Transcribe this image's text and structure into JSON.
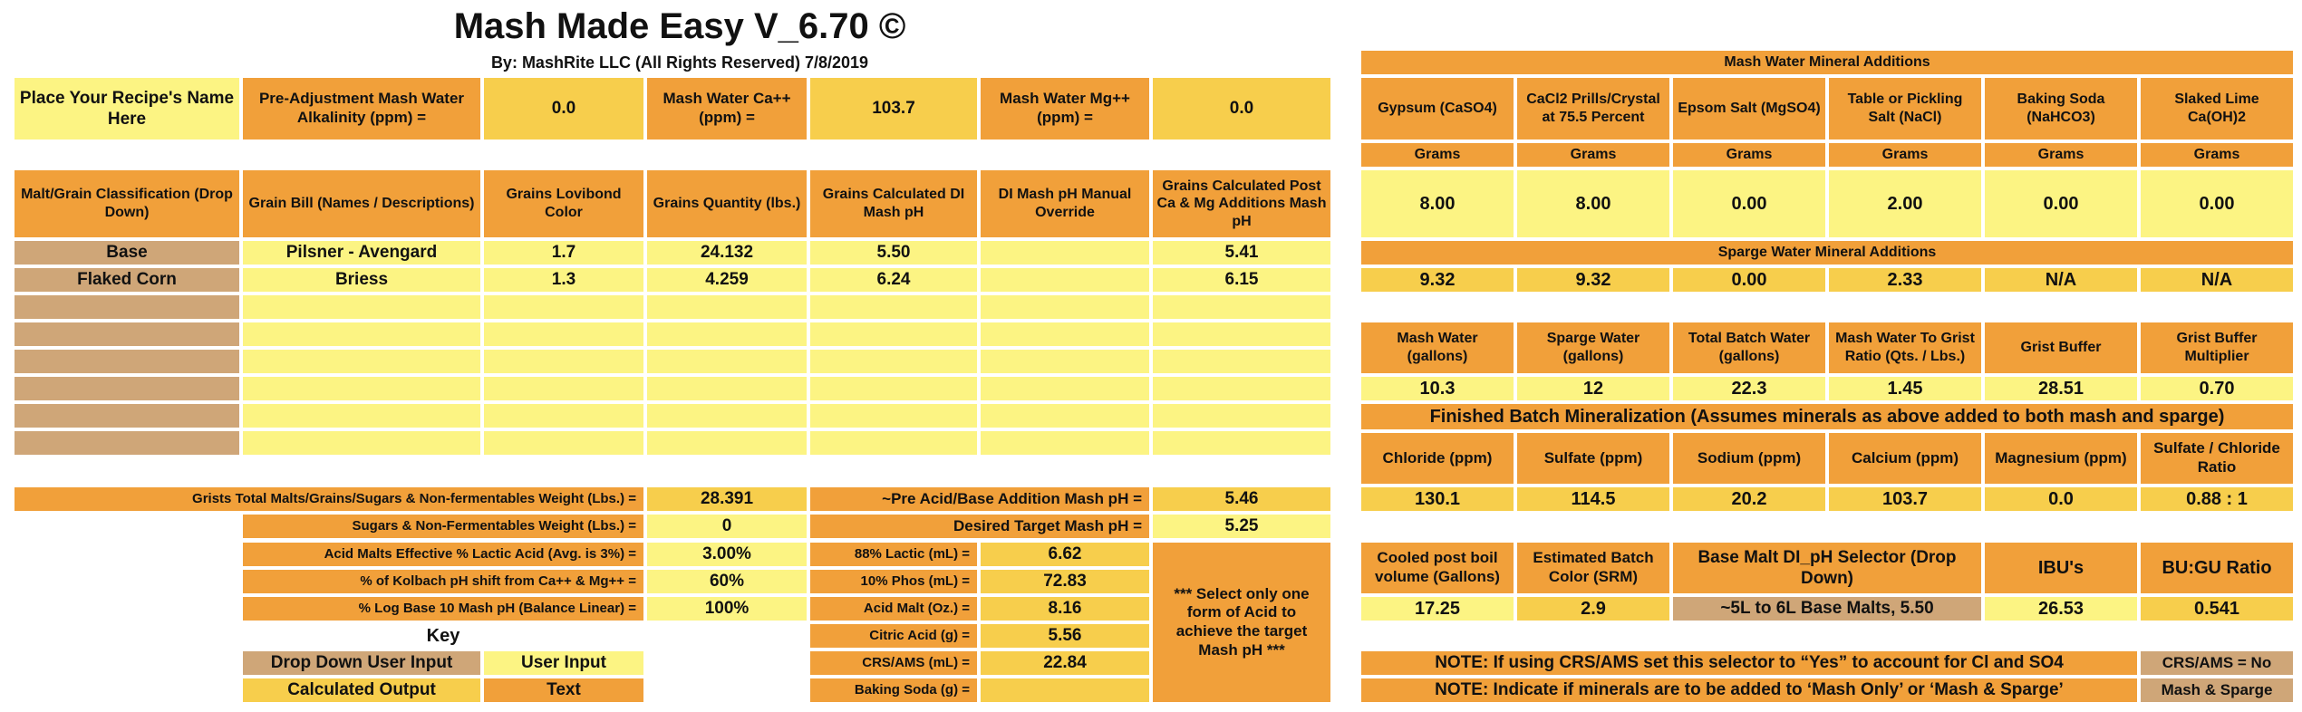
{
  "header": {
    "title": "Mash Made Easy V_6.70 ©",
    "byline": "By: MashRite LLC (All Rights Reserved) 7/8/2019"
  },
  "top": {
    "recipe_name": "Place Your Recipe's Name Here",
    "alk_label": "Pre-Adjustment Mash Water Alkalinity (ppm) =",
    "alk_value": "0.0",
    "ca_label": "Mash Water Ca++ (ppm)  =",
    "ca_value": "103.7",
    "mg_label": "Mash Water Mg++ (ppm)  =",
    "mg_value": "0.0"
  },
  "grain_table": {
    "headers": [
      "Malt/Grain Classification (Drop Down)",
      "Grain Bill (Names / Descriptions)",
      "Grains Lovibond Color",
      "Grains Quantity (lbs.)",
      "Grains Calculated DI Mash pH",
      "DI Mash pH Manual Override",
      "Grains Calculated Post  Ca & Mg Additions Mash pH"
    ],
    "rows": [
      [
        "Base",
        "Pilsner - Avengard",
        "1.7",
        "24.132",
        "5.50",
        "",
        "5.41"
      ],
      [
        "Flaked Corn",
        "Briess",
        "1.3",
        "4.259",
        "6.24",
        "",
        "6.15"
      ],
      [
        "",
        "",
        "",
        "",
        "",
        "",
        ""
      ],
      [
        "",
        "",
        "",
        "",
        "",
        "",
        ""
      ],
      [
        "",
        "",
        "",
        "",
        "",
        "",
        ""
      ],
      [
        "",
        "",
        "",
        "",
        "",
        "",
        ""
      ],
      [
        "",
        "",
        "",
        "",
        "",
        "",
        ""
      ],
      [
        "",
        "",
        "",
        "",
        "",
        "",
        ""
      ]
    ]
  },
  "totals": {
    "weight_label": "Grists Total Malts/Grains/Sugars & Non-fermentables Weight (Lbs.) =",
    "weight_value": "28.391",
    "pre_acid_label": "~Pre Acid/Base Addition Mash pH =",
    "pre_acid_value": "5.46",
    "sugars_label": "Sugars & Non-Fermentables Weight (Lbs.) =",
    "sugars_value": "0",
    "target_label": "Desired Target Mash pH =",
    "target_value": "5.25"
  },
  "acid": {
    "params": [
      {
        "label": "Acid Malts Effective % Lactic Acid (Avg. is 3%) =",
        "value": "3.00%"
      },
      {
        "label": "% of Kolbach pH shift from Ca++ & Mg++ =",
        "value": "60%"
      },
      {
        "label": "% Log Base 10 Mash pH (Balance Linear) =",
        "value": "100%"
      }
    ],
    "additions": [
      {
        "label": "88%  Lactic (mL) =",
        "value": "6.62"
      },
      {
        "label": "10%  Phos (mL) =",
        "value": "72.83"
      },
      {
        "label": "Acid Malt (Oz.) =",
        "value": "8.16"
      },
      {
        "label": "Citric Acid (g) =",
        "value": "5.56"
      },
      {
        "label": "CRS/AMS (mL) =",
        "value": "22.84"
      },
      {
        "label": "Baking Soda (g) =",
        "value": ""
      }
    ],
    "note": "*** Select only one form of Acid to achieve the target Mash pH ***"
  },
  "key": {
    "title": "Key",
    "dropdown": "Drop Down User Input",
    "user_input": "User Input",
    "calculated": "Calculated Output",
    "text": "Text"
  },
  "minerals": {
    "mash_title": "Mash Water Mineral Additions",
    "columns": [
      "Gypsum (CaSO4)",
      "CaCl2 Prills/Crystal at 75.5 Percent",
      "Epsom Salt (MgSO4)",
      "Table or Pickling Salt (NaCl)",
      "Baking Soda (NaHCO3)",
      "Slaked Lime Ca(OH)2"
    ],
    "unit": "Grams",
    "mash_values": [
      "8.00",
      "8.00",
      "0.00",
      "2.00",
      "0.00",
      "0.00"
    ],
    "sparge_title": "Sparge Water Mineral Additions",
    "sparge_values": [
      "9.32",
      "9.32",
      "0.00",
      "2.33",
      "N/A",
      "N/A"
    ]
  },
  "water": {
    "headers": [
      "Mash Water (gallons)",
      "Sparge Water (gallons)",
      "Total Batch Water (gallons)",
      "Mash Water To Grist Ratio  (Qts. / Lbs.)",
      "Grist Buffer",
      "Grist Buffer Multiplier"
    ],
    "values": [
      "10.3",
      "12",
      "22.3",
      "1.45",
      "28.51",
      "0.70"
    ]
  },
  "finished": {
    "title": "Finished Batch Mineralization (Assumes minerals as above added to both mash and sparge)",
    "headers": [
      "Chloride (ppm)",
      "Sulfate (ppm)",
      "Sodium (ppm)",
      "Calcium (ppm)",
      "Magnesium (ppm)",
      "Sulfate / Chloride Ratio"
    ],
    "values": [
      "130.1",
      "114.5",
      "20.2",
      "103.7",
      "0.0",
      "0.88 : 1"
    ]
  },
  "batch": {
    "boil_label": "Cooled post boil volume (Gallons)",
    "boil_value": "17.25",
    "color_label": "Estimated Batch Color (SRM)",
    "color_value": "2.9",
    "selector_label": "Base Malt DI_pH Selector  (Drop Down)",
    "selector_value": "~5L to 6L Base Malts, 5.50",
    "ibu_label": "IBU's",
    "ibu_value": "26.53",
    "bugu_label": "BU:GU Ratio",
    "bugu_value": "0.541"
  },
  "notes": {
    "crs_note": "NOTE: If using CRS/AMS set this selector to “Yes” to account for Cl and SO4",
    "crs_value": "CRS/AMS = No",
    "minerals_note": "NOTE: Indicate if minerals are to be added to ‘Mash Only’ or ‘Mash & Sparge’",
    "minerals_value": "Mash & Sparge"
  },
  "colors": {
    "orange": "#F1A03A",
    "light_yellow": "#FCF483",
    "gold": "#F7CE4C",
    "tan": "#CFA678"
  }
}
